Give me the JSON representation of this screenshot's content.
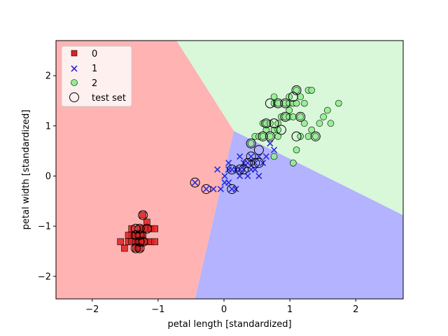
{
  "chart_data": {
    "type": "scatter",
    "title": "",
    "xlabel": "petal length [standardized]",
    "ylabel": "petal width [standardized]",
    "xlim": [
      -2.55,
      2.72
    ],
    "ylim": [
      -2.45,
      2.7
    ],
    "x_ticks": [
      -2,
      -1,
      0,
      1,
      2
    ],
    "y_ticks": [
      -2,
      -1,
      0,
      1,
      2
    ],
    "x_tick_labels": [
      "−2",
      "−1",
      "0",
      "1",
      "2"
    ],
    "y_tick_labels": [
      "−2",
      "−1",
      "0",
      "1",
      "2"
    ],
    "grid": false,
    "legend_placement": "upper-left",
    "regions": [
      {
        "class": "0",
        "color": "#ffb3b3",
        "polygon": [
          [
            -2.55,
            2.7
          ],
          [
            -0.72,
            2.7
          ],
          [
            0.15,
            0.9
          ],
          [
            -0.44,
            -2.45
          ],
          [
            -2.55,
            -2.45
          ]
        ]
      },
      {
        "class": "1",
        "color": "#b3b3ff",
        "polygon": [
          [
            0.15,
            0.9
          ],
          [
            2.72,
            -0.78
          ],
          [
            2.72,
            -2.45
          ],
          [
            -0.44,
            -2.45
          ]
        ]
      },
      {
        "class": "2",
        "color": "#d9f7d9",
        "polygon": [
          [
            -0.72,
            2.7
          ],
          [
            2.72,
            2.7
          ],
          [
            2.72,
            -0.78
          ],
          [
            0.15,
            0.9
          ]
        ]
      }
    ],
    "series": [
      {
        "name": "0",
        "marker": "square",
        "color": "#e02020",
        "points": [
          [
            -1.57,
            -1.31
          ],
          [
            -1.51,
            -1.44
          ],
          [
            -1.45,
            -1.31
          ],
          [
            -1.4,
            -1.18
          ],
          [
            -1.4,
            -1.31
          ],
          [
            -1.34,
            -1.31
          ],
          [
            -1.34,
            -1.18
          ],
          [
            -1.34,
            -1.44
          ],
          [
            -1.28,
            -1.05
          ],
          [
            -1.28,
            -1.18
          ],
          [
            -1.28,
            -1.31
          ],
          [
            -1.28,
            -1.44
          ],
          [
            -1.23,
            -1.31
          ],
          [
            -1.23,
            -1.18
          ],
          [
            -1.23,
            -1.05
          ],
          [
            -1.23,
            -0.78
          ],
          [
            -1.17,
            -1.31
          ],
          [
            -1.17,
            -1.05
          ],
          [
            -1.11,
            -1.05
          ],
          [
            -1.11,
            -1.31
          ],
          [
            -1.17,
            -0.92
          ],
          [
            -1.05,
            -1.05
          ],
          [
            -1.05,
            -1.31
          ],
          [
            -1.45,
            -1.18
          ],
          [
            -1.4,
            -1.05
          ]
        ]
      },
      {
        "name": "1",
        "marker": "x",
        "color": "#2b2bd6",
        "points": [
          [
            -0.44,
            -0.13
          ],
          [
            -0.27,
            -0.26
          ],
          [
            -0.16,
            -0.26
          ],
          [
            -0.1,
            0.13
          ],
          [
            -0.05,
            -0.26
          ],
          [
            0.01,
            -0.13
          ],
          [
            0.01,
            0.0
          ],
          [
            0.07,
            0.26
          ],
          [
            0.07,
            -0.13
          ],
          [
            0.07,
            0.13
          ],
          [
            0.12,
            -0.26
          ],
          [
            0.12,
            0.13
          ],
          [
            0.18,
            0.13
          ],
          [
            0.18,
            -0.26
          ],
          [
            0.24,
            0.13
          ],
          [
            0.24,
            0.39
          ],
          [
            0.24,
            0.0
          ],
          [
            0.3,
            0.13
          ],
          [
            0.3,
            0.26
          ],
          [
            0.36,
            0.26
          ],
          [
            0.36,
            0.0
          ],
          [
            0.41,
            0.13
          ],
          [
            0.41,
            0.39
          ],
          [
            0.47,
            0.26
          ],
          [
            0.47,
            0.13
          ],
          [
            0.53,
            0.39
          ],
          [
            0.53,
            0.0
          ],
          [
            0.59,
            0.26
          ],
          [
            0.64,
            0.39
          ],
          [
            0.7,
            0.65
          ],
          [
            0.76,
            0.52
          ]
        ]
      },
      {
        "name": "2",
        "marker": "circle",
        "color": "#90ee90",
        "points": [
          [
            0.41,
            0.65
          ],
          [
            0.47,
            0.79
          ],
          [
            0.53,
            0.79
          ],
          [
            0.59,
            0.79
          ],
          [
            0.59,
            1.05
          ],
          [
            0.64,
            0.92
          ],
          [
            0.64,
            1.05
          ],
          [
            0.7,
            0.79
          ],
          [
            0.7,
            1.05
          ],
          [
            0.76,
            0.92
          ],
          [
            0.76,
            1.45
          ],
          [
            0.76,
            1.58
          ],
          [
            0.82,
            0.92
          ],
          [
            0.82,
            1.05
          ],
          [
            0.82,
            1.45
          ],
          [
            0.87,
            1.18
          ],
          [
            0.93,
            1.18
          ],
          [
            0.93,
            1.45
          ],
          [
            0.99,
            1.18
          ],
          [
            0.99,
            1.31
          ],
          [
            0.99,
            1.45
          ],
          [
            0.99,
            1.58
          ],
          [
            1.05,
            1.45
          ],
          [
            1.05,
            0.26
          ],
          [
            1.05,
            1.18
          ],
          [
            1.1,
            1.71
          ],
          [
            1.1,
            1.45
          ],
          [
            1.16,
            1.18
          ],
          [
            1.16,
            0.79
          ],
          [
            1.16,
            1.58
          ],
          [
            1.22,
            1.45
          ],
          [
            1.28,
            1.71
          ],
          [
            1.28,
            0.79
          ],
          [
            1.33,
            1.71
          ],
          [
            1.33,
            0.92
          ],
          [
            1.39,
            0.79
          ],
          [
            1.45,
            1.05
          ],
          [
            1.51,
            1.18
          ],
          [
            1.57,
            1.31
          ],
          [
            1.62,
            1.05
          ],
          [
            1.74,
            1.45
          ],
          [
            1.1,
            0.52
          ],
          [
            0.76,
            0.39
          ],
          [
            0.82,
            0.79
          ],
          [
            1.22,
            1.05
          ]
        ]
      }
    ],
    "test_set": {
      "name": "test set",
      "marker": "ring",
      "points": [
        [
          -1.34,
          -1.05
        ],
        [
          -1.28,
          -1.31
        ],
        [
          -1.23,
          -1.31
        ],
        [
          -1.28,
          -1.44
        ],
        [
          -1.34,
          -1.44
        ],
        [
          -1.34,
          -1.18
        ],
        [
          -1.28,
          -1.05
        ],
        [
          -1.23,
          -0.78
        ],
        [
          -1.28,
          -1.18
        ],
        [
          -1.17,
          -1.05
        ],
        [
          -0.44,
          -0.13
        ],
        [
          -0.27,
          -0.26
        ],
        [
          0.12,
          0.13
        ],
        [
          0.12,
          -0.26
        ],
        [
          0.24,
          0.13
        ],
        [
          0.3,
          0.13
        ],
        [
          0.36,
          0.26
        ],
        [
          0.41,
          0.39
        ],
        [
          0.47,
          0.26
        ],
        [
          0.53,
          0.26
        ],
        [
          0.53,
          0.52
        ],
        [
          0.41,
          0.65
        ],
        [
          0.59,
          0.79
        ],
        [
          0.7,
          0.79
        ],
        [
          0.64,
          1.05
        ],
        [
          0.7,
          1.45
        ],
        [
          0.76,
          1.05
        ],
        [
          0.87,
          0.92
        ],
        [
          0.82,
          1.45
        ],
        [
          0.93,
          1.18
        ],
        [
          0.93,
          1.45
        ],
        [
          1.05,
          1.58
        ],
        [
          1.1,
          1.71
        ],
        [
          1.1,
          0.79
        ],
        [
          1.16,
          1.18
        ],
        [
          1.39,
          0.79
        ]
      ]
    }
  }
}
